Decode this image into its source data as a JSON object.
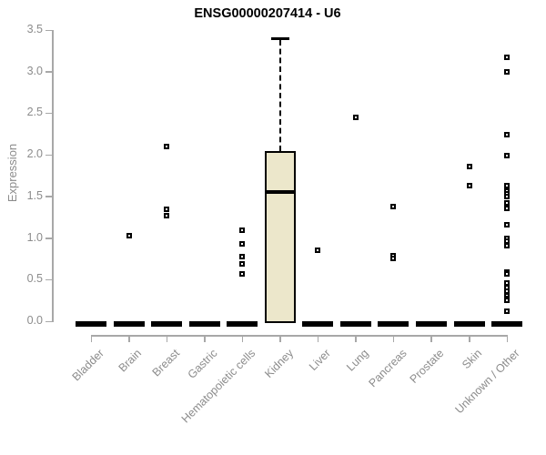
{
  "chart_data": {
    "type": "boxplot",
    "title": "ENSG00000207414 - U6",
    "ylabel": "Expression",
    "xlabel": "",
    "ylim": [
      0.0,
      3.5
    ],
    "yticks": [
      "0.0",
      "0.5",
      "1.0",
      "1.5",
      "2.0",
      "2.5",
      "3.0",
      "3.5"
    ],
    "grid": false,
    "legend": "none",
    "colors": {
      "box_fill": "#ece7cb",
      "box_border": "#000000",
      "marker": "#000000",
      "axis": "#a8a8a8",
      "tick_label": "#8c8c8c",
      "title": "#000000"
    },
    "categories": [
      "Bladder",
      "Brain",
      "Breast",
      "Gastric",
      "Hematopoietic cells",
      "Kidney",
      "Liver",
      "Lung",
      "Pancreas",
      "Prostate",
      "Skin",
      "Unknown / Other"
    ],
    "series": [
      {
        "category": "Bladder",
        "median": 0,
        "points": []
      },
      {
        "category": "Brain",
        "median": 0,
        "points": [
          1.03
        ]
      },
      {
        "category": "Breast",
        "median": 0,
        "points": [
          2.1,
          1.35,
          1.27
        ]
      },
      {
        "category": "Gastric",
        "median": 0,
        "points": []
      },
      {
        "category": "Hematopoietic cells",
        "median": 0,
        "points": [
          1.09,
          0.93,
          0.78,
          0.69,
          0.57
        ]
      },
      {
        "category": "Kidney",
        "box": {
          "q1": 0.02,
          "median": 1.55,
          "q3": 2.05,
          "whisker_high": 3.4
        },
        "points": []
      },
      {
        "category": "Liver",
        "median": 0,
        "points": [
          0.85
        ]
      },
      {
        "category": "Lung",
        "median": 0,
        "points": [
          2.45
        ]
      },
      {
        "category": "Pancreas",
        "median": 0,
        "points": [
          1.38,
          0.79,
          0.76
        ]
      },
      {
        "category": "Prostate",
        "median": 0,
        "points": []
      },
      {
        "category": "Skin",
        "median": 0,
        "points": [
          1.86,
          1.63
        ]
      },
      {
        "category": "Unknown / Other",
        "median": 0,
        "points": [
          3.17,
          3.0,
          2.24,
          1.99,
          1.63,
          1.56,
          1.53,
          1.5,
          1.42,
          1.36,
          1.16,
          1.0,
          0.96,
          0.91,
          0.59,
          0.57,
          0.46,
          0.4,
          0.36,
          0.31,
          0.27,
          0.25,
          0.12
        ]
      }
    ]
  }
}
